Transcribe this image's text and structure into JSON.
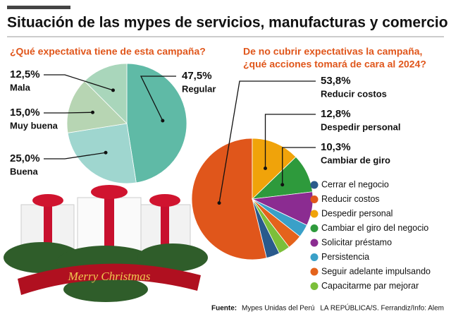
{
  "title": "Situación de las mypes de servicios, manufacturas y comercio",
  "chart_data": [
    {
      "type": "pie",
      "title": "¿Qué expectativa tiene de esta campaña?",
      "categories": [
        "Regular",
        "Buena",
        "Muy buena",
        "Mala"
      ],
      "values": [
        47.5,
        25.0,
        15.0,
        12.5
      ],
      "value_labels": [
        "47,5%",
        "25,0%",
        "15,0%",
        "12,5%"
      ],
      "colors": [
        "#5fbaa6",
        "#9fd6cf",
        "#b7d5b3",
        "#a9d6bb"
      ]
    },
    {
      "type": "pie",
      "title": [
        "De no cubrir expectativas la campaña,",
        "¿qué acciones tomará de cara al 2024?"
      ],
      "categories": [
        "Cerrar el negocio",
        "Reducir costos",
        "Despedir personal",
        "Cambiar el giro del negocio",
        "Solicitar préstamo",
        "Persistencia",
        "Seguir adelante impulsando",
        "Capacitarme par mejorar"
      ],
      "values": [
        3.6,
        53.8,
        12.8,
        10.3,
        9.0,
        3.5,
        4.0,
        3.0
      ],
      "value_labels": [
        null,
        "53,8%",
        "12,8%",
        "10,3%",
        null,
        null,
        null,
        null
      ],
      "slice_labels": [
        null,
        "Reducir costos",
        "Despedir personal",
        "Cambiar de giro",
        null,
        null,
        null,
        null
      ],
      "colors": [
        "#2a5a8c",
        "#e0561b",
        "#f0a30a",
        "#2e9a3c",
        "#8b2c91",
        "#3aa0c8",
        "#e4631c",
        "#7cbf3a"
      ],
      "legend": "right"
    }
  ],
  "banner": "Merry Christmas",
  "footer": {
    "source_label": "Fuente:",
    "source": "Mypes Unidas del Perú",
    "credits": "LA REPÚBLICA/S. Ferrandiz/Info: Alem"
  }
}
